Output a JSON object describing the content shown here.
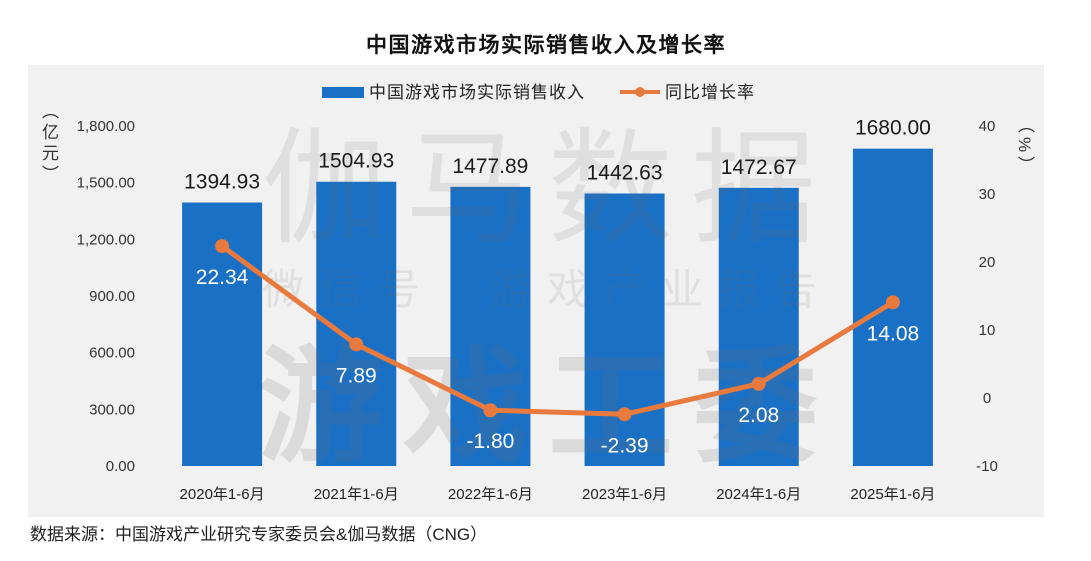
{
  "source": "数据来源：中国游戏产业研究专家委员会&伽马数据（CNG）",
  "watermark": {
    "brand": "伽马数据",
    "wechat_label": "微信号",
    "wechat_name": "游戏产业报告",
    "publisher": "游戏工委"
  },
  "colors": {
    "bar": "#1a70c5",
    "line": "#e97a3e",
    "panel_background": "#f1f1f1"
  },
  "chart_data": {
    "type": "bar",
    "title": "中国游戏市场实际销售收入及增长率",
    "categories": [
      "2020年1-6月",
      "2021年1-6月",
      "2022年1-6月",
      "2023年1-6月",
      "2024年1-6月",
      "2025年1-6月"
    ],
    "series": [
      {
        "name": "中国游戏市场实际销售收入",
        "type": "bar",
        "axis": "left",
        "values": [
          1394.93,
          1504.93,
          1477.89,
          1442.63,
          1472.67,
          1680.0
        ],
        "data_labels": [
          "1394.93",
          "1504.93",
          "1477.89",
          "1442.63",
          "1472.67",
          "1680.00"
        ]
      },
      {
        "name": "同比增长率",
        "type": "line",
        "axis": "right",
        "values": [
          22.34,
          7.89,
          -1.8,
          -2.39,
          2.08,
          14.08
        ],
        "data_labels": [
          "22.34",
          "7.89",
          "-1.80",
          "-2.39",
          "2.08",
          "14.08"
        ]
      }
    ],
    "y_left": {
      "label": "（亿元）",
      "ylim": [
        0,
        1800
      ],
      "ticks": [
        0,
        300,
        600,
        900,
        1200,
        1500,
        1800
      ],
      "tick_labels": [
        "0.00",
        "300.00",
        "600.00",
        "900.00",
        "1,200.00",
        "1,500.00",
        "1,800.00"
      ]
    },
    "y_right": {
      "label": "（%）",
      "ylim": [
        -10,
        40
      ],
      "ticks": [
        -10,
        0,
        10,
        20,
        30,
        40
      ],
      "tick_labels": [
        "-10",
        "0",
        "10",
        "20",
        "30",
        "40"
      ]
    },
    "legend": "top-center",
    "grid": false
  }
}
